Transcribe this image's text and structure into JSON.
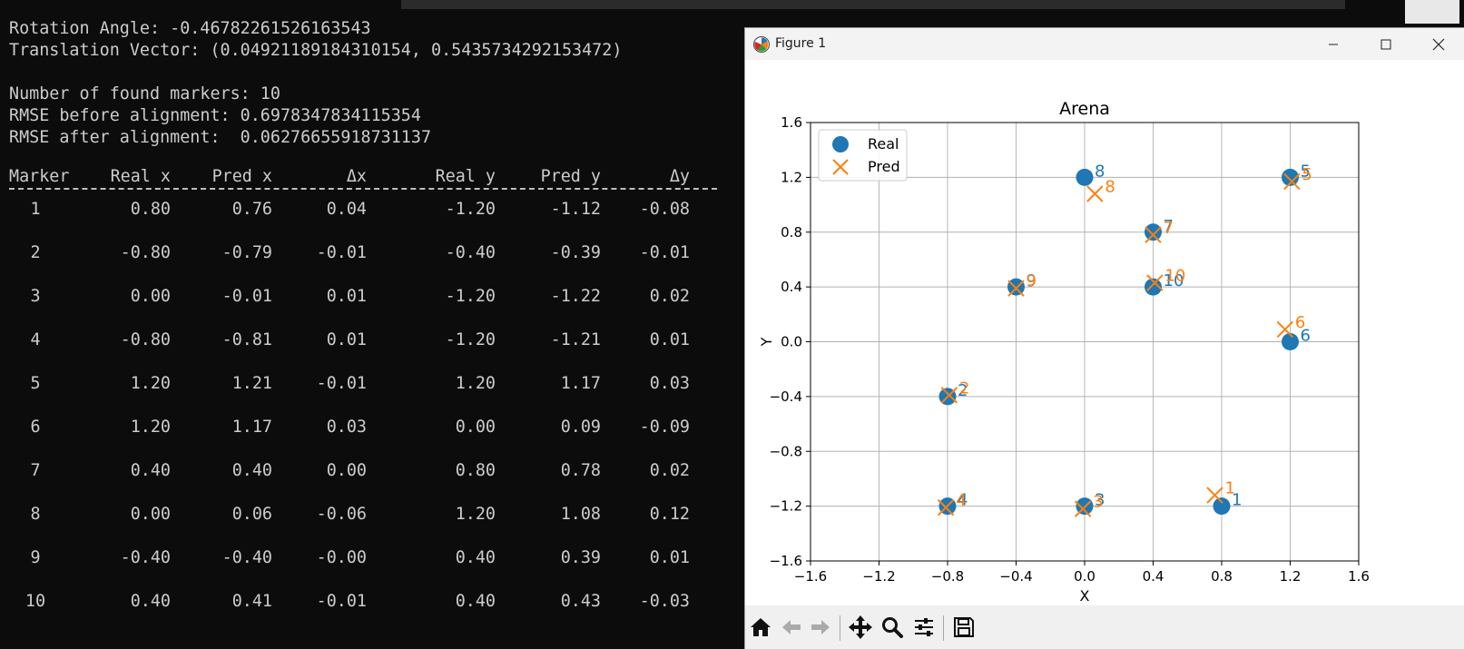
{
  "terminal": {
    "lines": [
      "Rotation Angle: -0.46782261526163543",
      "Translation Vector: (0.04921189184310154, 0.5435734292153472)",
      "",
      "Number of found markers: 10",
      "RMSE before alignment: 0.6978347834115354",
      "RMSE after alignment:  0.06276655918731137"
    ],
    "table": {
      "headers": [
        "Marker",
        "Real x",
        "Pred x",
        "Δx",
        "Real y",
        "Pred y",
        "Δy"
      ],
      "divider": "----------------------------------------------------------------------",
      "rows": [
        [
          "1",
          "0.80",
          "0.76",
          "0.04",
          "-1.20",
          "-1.12",
          "-0.08"
        ],
        [
          "2",
          "-0.80",
          "-0.79",
          "-0.01",
          "-0.40",
          "-0.39",
          "-0.01"
        ],
        [
          "3",
          "0.00",
          "-0.01",
          "0.01",
          "-1.20",
          "-1.22",
          "0.02"
        ],
        [
          "4",
          "-0.80",
          "-0.81",
          "0.01",
          "-1.20",
          "-1.21",
          "0.01"
        ],
        [
          "5",
          "1.20",
          "1.21",
          "-0.01",
          "1.20",
          "1.17",
          "0.03"
        ],
        [
          "6",
          "1.20",
          "1.17",
          "0.03",
          "0.00",
          "0.09",
          "-0.09"
        ],
        [
          "7",
          "0.40",
          "0.40",
          "0.00",
          "0.80",
          "0.78",
          "0.02"
        ],
        [
          "8",
          "0.00",
          "0.06",
          "-0.06",
          "1.20",
          "1.08",
          "0.12"
        ],
        [
          "9",
          "-0.40",
          "-0.40",
          "-0.00",
          "0.40",
          "0.39",
          "0.01"
        ],
        [
          "10",
          "0.40",
          "0.41",
          "-0.01",
          "0.40",
          "0.43",
          "-0.03"
        ]
      ]
    }
  },
  "figure_window": {
    "title": "Figure 1",
    "buttons": [
      "minimize",
      "maximize",
      "close"
    ],
    "toolbar": [
      "home-icon",
      "back-icon",
      "forward-icon",
      "pan-icon",
      "zoom-icon",
      "configure-icon",
      "save-icon"
    ]
  },
  "colors": {
    "real": "#1f77b4",
    "pred": "#ff7f0e",
    "terminal_bg": "#0c0c0c",
    "terminal_fg": "#cccccc"
  },
  "chart_data": {
    "type": "scatter",
    "title": "Arena",
    "xlabel": "X",
    "ylabel": "Y",
    "xlim": [
      -1.6,
      1.6
    ],
    "ylim": [
      -1.6,
      1.6
    ],
    "xticks": [
      -1.6,
      -1.2,
      -0.8,
      -0.4,
      0.0,
      0.4,
      0.8,
      1.2,
      1.6
    ],
    "yticks": [
      -1.6,
      -1.2,
      -0.8,
      -0.4,
      0.0,
      0.4,
      0.8,
      1.2,
      1.6
    ],
    "xtick_labels": [
      "−1.6",
      "−1.2",
      "−0.8",
      "−0.4",
      "0.0",
      "0.4",
      "0.8",
      "1.2",
      "1.6"
    ],
    "ytick_labels": [
      "−1.6",
      "−1.2",
      "−0.8",
      "−0.4",
      "0.0",
      "0.4",
      "0.8",
      "1.2",
      "1.6"
    ],
    "grid": true,
    "legend_position": "top-left",
    "series": [
      {
        "name": "Real",
        "marker": "circle",
        "color": "#1f77b4",
        "points": [
          {
            "label": "1",
            "x": 0.8,
            "y": -1.2
          },
          {
            "label": "2",
            "x": -0.8,
            "y": -0.4
          },
          {
            "label": "3",
            "x": 0.0,
            "y": -1.2
          },
          {
            "label": "4",
            "x": -0.8,
            "y": -1.2
          },
          {
            "label": "5",
            "x": 1.2,
            "y": 1.2
          },
          {
            "label": "6",
            "x": 1.2,
            "y": 0.0
          },
          {
            "label": "7",
            "x": 0.4,
            "y": 0.8
          },
          {
            "label": "8",
            "x": 0.0,
            "y": 1.2
          },
          {
            "label": "9",
            "x": -0.4,
            "y": 0.4
          },
          {
            "label": "10",
            "x": 0.4,
            "y": 0.4
          }
        ]
      },
      {
        "name": "Pred",
        "marker": "x",
        "color": "#ff7f0e",
        "points": [
          {
            "label": "1",
            "x": 0.76,
            "y": -1.12
          },
          {
            "label": "2",
            "x": -0.79,
            "y": -0.39
          },
          {
            "label": "3",
            "x": -0.01,
            "y": -1.22
          },
          {
            "label": "4",
            "x": -0.81,
            "y": -1.21
          },
          {
            "label": "5",
            "x": 1.21,
            "y": 1.17
          },
          {
            "label": "6",
            "x": 1.17,
            "y": 0.09
          },
          {
            "label": "7",
            "x": 0.4,
            "y": 0.78
          },
          {
            "label": "8",
            "x": 0.06,
            "y": 1.08
          },
          {
            "label": "9",
            "x": -0.4,
            "y": 0.39
          },
          {
            "label": "10",
            "x": 0.41,
            "y": 0.43
          }
        ]
      }
    ]
  }
}
